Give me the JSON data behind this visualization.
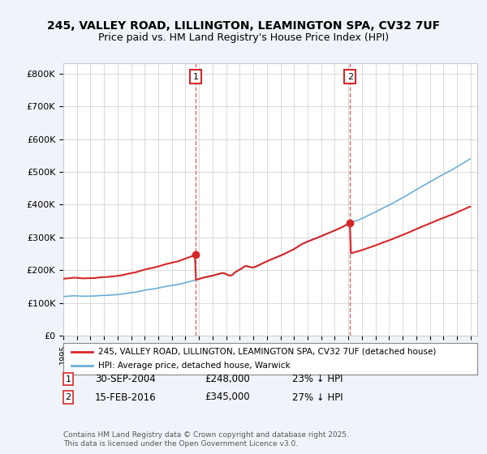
{
  "title_line1": "245, VALLEY ROAD, LILLINGTON, LEAMINGTON SPA, CV32 7UF",
  "title_line2": "Price paid vs. HM Land Registry's House Price Index (HPI)",
  "ylabel": "",
  "yticks": [
    0,
    100000,
    200000,
    300000,
    400000,
    500000,
    600000,
    700000,
    800000
  ],
  "ytick_labels": [
    "£0",
    "£100K",
    "£200K",
    "£300K",
    "£400K",
    "£500K",
    "£600K",
    "£700K",
    "£800K"
  ],
  "ylim": [
    0,
    830000
  ],
  "hpi_color": "#6baed6",
  "price_color": "#d62728",
  "marker1_date_idx": 9.75,
  "marker2_date_idx": 21.17,
  "marker1_label": "1",
  "marker2_label": "2",
  "marker1_price": 248000,
  "marker2_price": 345000,
  "legend_label1": "245, VALLEY ROAD, LILLINGTON, LEAMINGTON SPA, CV32 7UF (detached house)",
  "legend_label2": "HPI: Average price, detached house, Warwick",
  "table_row1": "1    30-SEP-2004    £248,000    23% ↓ HPI",
  "table_row2": "2    15-FEB-2016    £345,000    27% ↓ HPI",
  "footer": "Contains HM Land Registry data © Crown copyright and database right 2025.\nThis data is licensed under the Open Government Licence v3.0.",
  "background_color": "#f0f4fa",
  "plot_bg_color": "#ffffff",
  "x_start_year": 1995,
  "x_end_year": 2025
}
